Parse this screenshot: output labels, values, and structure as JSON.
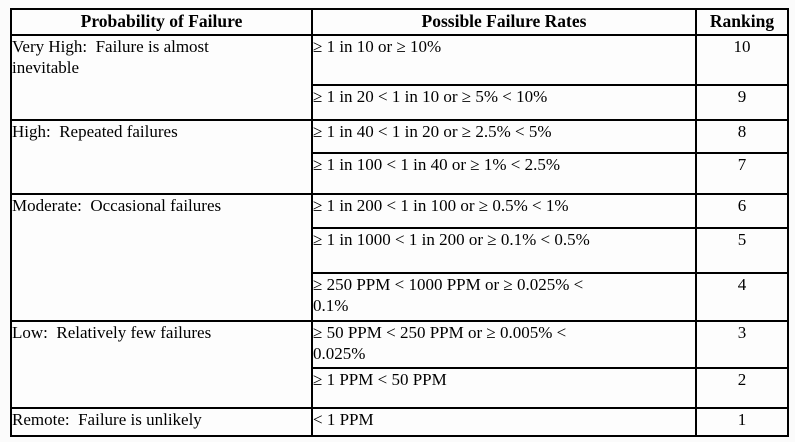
{
  "table": {
    "columns": [
      "Probability of Failure",
      "Possible Failure Rates",
      "Ranking"
    ],
    "groups": [
      {
        "probability": "Very High:  Failure is almost\ninevitable",
        "rows": [
          {
            "rate": "≥ 1 in 10 or ≥ 10%",
            "ranking": "10"
          },
          {
            "rate": "≥ 1 in 20 < 1 in 10 or ≥ 5% < 10%",
            "ranking": "9"
          }
        ]
      },
      {
        "probability": "High:  Repeated failures",
        "rows": [
          {
            "rate": "≥ 1 in 40 < 1 in 20 or ≥ 2.5% < 5%",
            "ranking": "8"
          },
          {
            "rate": "≥ 1 in 100 < 1 in 40 or ≥ 1% < 2.5%",
            "ranking": "7"
          }
        ]
      },
      {
        "probability": "Moderate:  Occasional failures",
        "rows": [
          {
            "rate": "≥ 1 in 200 < 1 in 100 or ≥ 0.5% < 1%",
            "ranking": "6"
          },
          {
            "rate": "≥ 1 in 1000 < 1 in 200 or ≥ 0.1% < 0.5%",
            "ranking": "5"
          },
          {
            "rate": "≥ 250 PPM < 1000 PPM or ≥ 0.025% <\n0.1%",
            "ranking": "4"
          }
        ]
      },
      {
        "probability": "Low:  Relatively few failures",
        "rows": [
          {
            "rate": "≥ 50 PPM < 250 PPM or ≥ 0.005% <\n0.025%",
            "ranking": "3"
          },
          {
            "rate": "≥ 1 PPM < 50 PPM",
            "ranking": "2"
          }
        ]
      },
      {
        "probability": "Remote:  Failure is unlikely",
        "rows": [
          {
            "rate": "< 1 PPM",
            "ranking": "1"
          }
        ]
      }
    ]
  },
  "style": {
    "border_color": "#000000",
    "text_color": "#000000",
    "background": "#fbfbfb"
  }
}
